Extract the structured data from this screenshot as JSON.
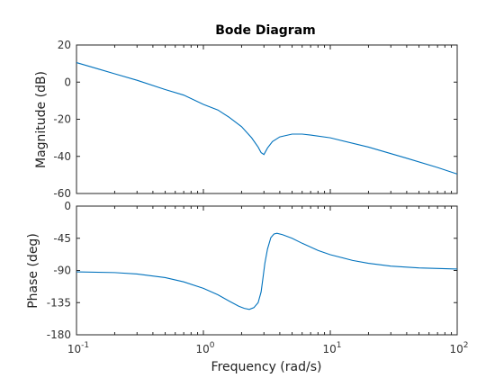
{
  "chart_data": {
    "type": "line",
    "title": "Bode Diagram",
    "xlabel": "Frequency  (rad/s)",
    "xscale": "log",
    "xlim": [
      0.1,
      100
    ],
    "x_ticks": [
      {
        "value": 0.1,
        "base": "10",
        "exp": "-1"
      },
      {
        "value": 1,
        "base": "10",
        "exp": "0"
      },
      {
        "value": 10,
        "base": "10",
        "exp": "1"
      },
      {
        "value": 100,
        "base": "10",
        "exp": "2"
      }
    ],
    "grid": false,
    "line_color": "#0072bd",
    "subplots": [
      {
        "ylabel": "Magnitude (dB)",
        "ylim": [
          -60,
          20
        ],
        "y_ticks": [
          "20",
          "0",
          "-20",
          "-40",
          "-60"
        ],
        "series": [
          {
            "x": [
              0.1,
              0.15,
              0.2,
              0.3,
              0.5,
              0.7,
              1.0,
              1.3,
              1.6,
              2.0,
              2.4,
              2.7,
              2.85,
              3.0,
              3.2,
              3.5,
              4.0,
              5.0,
              6.0,
              7.0,
              10,
              20,
              40,
              70,
              100
            ],
            "y": [
              10.5,
              7,
              4.5,
              1,
              -4,
              -7,
              -12,
              -15,
              -19,
              -24,
              -30,
              -35,
              -38,
              -39,
              -35.5,
              -32,
              -29.5,
              -28,
              -28,
              -28.5,
              -30,
              -35,
              -41,
              -46,
              -49.5
            ]
          }
        ]
      },
      {
        "ylabel": "Phase (deg)",
        "ylim": [
          -180,
          0
        ],
        "y_ticks": [
          "0",
          "-45",
          "-90",
          "-135",
          "-180"
        ],
        "series": [
          {
            "x": [
              0.1,
              0.2,
              0.3,
              0.5,
              0.7,
              1.0,
              1.3,
              1.6,
              1.9,
              2.1,
              2.3,
              2.5,
              2.7,
              2.85,
              2.95,
              3.05,
              3.2,
              3.4,
              3.6,
              3.8,
              4.2,
              5.0,
              6.0,
              8.0,
              10,
              15,
              20,
              30,
              50,
              100
            ],
            "y": [
              -92,
              -93,
              -95,
              -100,
              -106,
              -115,
              -124,
              -133,
              -140,
              -143,
              -144.5,
              -142,
              -135,
              -120,
              -100,
              -80,
              -60,
              -44,
              -39,
              -38,
              -40,
              -45,
              -52,
              -62,
              -68,
              -76,
              -80,
              -84,
              -86.5,
              -88
            ]
          }
        ]
      }
    ]
  }
}
